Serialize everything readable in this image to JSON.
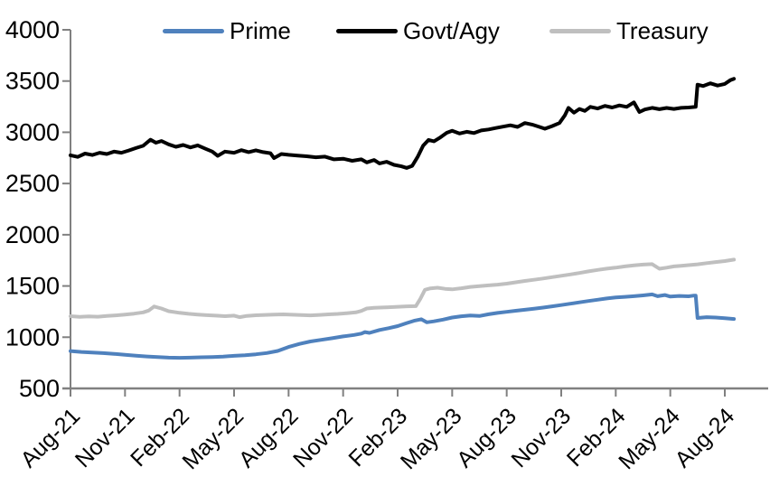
{
  "chart_data": {
    "type": "line",
    "title": "",
    "xlabel": "",
    "ylabel": "",
    "grid": false,
    "legend_position": "top",
    "axis_color": "#808080",
    "text_color": "#000000",
    "ylim": [
      500,
      4000
    ],
    "y_ticks": [
      500,
      1000,
      1500,
      2000,
      2500,
      3000,
      3500,
      4000
    ],
    "x_tick_labels": [
      "Aug-21",
      "Nov-21",
      "Feb-22",
      "May-22",
      "Aug-22",
      "Nov-22",
      "Feb-23",
      "May-23",
      "Aug-23",
      "Nov-23",
      "Feb-24",
      "May-24",
      "Aug-24"
    ],
    "x_months_per_tick": 3,
    "x_domain_months": [
      0,
      36.5
    ],
    "series": [
      {
        "name": "Prime",
        "color": "#4f81bd",
        "points": [
          [
            0,
            865
          ],
          [
            0.6,
            856
          ],
          [
            1.2,
            850
          ],
          [
            1.8,
            845
          ],
          [
            2.4,
            838
          ],
          [
            3,
            828
          ],
          [
            3.6,
            820
          ],
          [
            4.2,
            812
          ],
          [
            4.8,
            806
          ],
          [
            5.4,
            801
          ],
          [
            6,
            799
          ],
          [
            6.6,
            801
          ],
          [
            7.2,
            804
          ],
          [
            7.8,
            807
          ],
          [
            8.4,
            811
          ],
          [
            9,
            818
          ],
          [
            9.6,
            824
          ],
          [
            10.2,
            833
          ],
          [
            10.8,
            846
          ],
          [
            11.4,
            866
          ],
          [
            12,
            905
          ],
          [
            12.6,
            935
          ],
          [
            13.2,
            958
          ],
          [
            13.8,
            974
          ],
          [
            14.4,
            990
          ],
          [
            15,
            1008
          ],
          [
            15.6,
            1022
          ],
          [
            16,
            1035
          ],
          [
            16.2,
            1050
          ],
          [
            16.45,
            1042
          ],
          [
            17,
            1070
          ],
          [
            17.5,
            1088
          ],
          [
            18,
            1108
          ],
          [
            18.5,
            1138
          ],
          [
            18.9,
            1160
          ],
          [
            19.3,
            1175
          ],
          [
            19.6,
            1145
          ],
          [
            20,
            1155
          ],
          [
            20.5,
            1172
          ],
          [
            21,
            1192
          ],
          [
            21.5,
            1204
          ],
          [
            22,
            1212
          ],
          [
            22.5,
            1207
          ],
          [
            23,
            1224
          ],
          [
            23.5,
            1237
          ],
          [
            24,
            1248
          ],
          [
            24.5,
            1258
          ],
          [
            25,
            1268
          ],
          [
            25.5,
            1278
          ],
          [
            26,
            1289
          ],
          [
            26.5,
            1301
          ],
          [
            27,
            1314
          ],
          [
            27.5,
            1327
          ],
          [
            28,
            1340
          ],
          [
            28.5,
            1353
          ],
          [
            29,
            1366
          ],
          [
            29.5,
            1378
          ],
          [
            30,
            1388
          ],
          [
            30.5,
            1394
          ],
          [
            31,
            1400
          ],
          [
            31.5,
            1408
          ],
          [
            32,
            1418
          ],
          [
            32.3,
            1400
          ],
          [
            32.7,
            1412
          ],
          [
            33,
            1397
          ],
          [
            33.5,
            1403
          ],
          [
            34,
            1399
          ],
          [
            34.3,
            1406
          ],
          [
            34.4,
            1405
          ],
          [
            34.5,
            1188
          ],
          [
            35,
            1196
          ],
          [
            35.5,
            1192
          ],
          [
            36,
            1186
          ],
          [
            36.5,
            1178
          ]
        ]
      },
      {
        "name": "Govt/Agy",
        "color": "#000000",
        "points": [
          [
            0,
            2775
          ],
          [
            0.4,
            2760
          ],
          [
            0.8,
            2792
          ],
          [
            1.2,
            2778
          ],
          [
            1.6,
            2800
          ],
          [
            2,
            2788
          ],
          [
            2.4,
            2812
          ],
          [
            2.8,
            2800
          ],
          [
            3.2,
            2822
          ],
          [
            3.6,
            2846
          ],
          [
            4,
            2868
          ],
          [
            4.4,
            2928
          ],
          [
            4.7,
            2898
          ],
          [
            5,
            2915
          ],
          [
            5.4,
            2882
          ],
          [
            5.8,
            2858
          ],
          [
            6.2,
            2876
          ],
          [
            6.6,
            2852
          ],
          [
            7,
            2872
          ],
          [
            7.4,
            2842
          ],
          [
            7.8,
            2812
          ],
          [
            8.1,
            2770
          ],
          [
            8.5,
            2812
          ],
          [
            9,
            2800
          ],
          [
            9.4,
            2826
          ],
          [
            9.8,
            2806
          ],
          [
            10.2,
            2824
          ],
          [
            10.6,
            2806
          ],
          [
            11,
            2796
          ],
          [
            11.2,
            2748
          ],
          [
            11.6,
            2788
          ],
          [
            12,
            2780
          ],
          [
            12.5,
            2772
          ],
          [
            13,
            2766
          ],
          [
            13.5,
            2756
          ],
          [
            14,
            2762
          ],
          [
            14.5,
            2736
          ],
          [
            15,
            2742
          ],
          [
            15.5,
            2722
          ],
          [
            16,
            2736
          ],
          [
            16.3,
            2706
          ],
          [
            16.7,
            2730
          ],
          [
            17,
            2696
          ],
          [
            17.4,
            2712
          ],
          [
            17.8,
            2682
          ],
          [
            18.2,
            2668
          ],
          [
            18.5,
            2652
          ],
          [
            18.8,
            2672
          ],
          [
            19.1,
            2760
          ],
          [
            19.4,
            2870
          ],
          [
            19.7,
            2925
          ],
          [
            20,
            2912
          ],
          [
            20.3,
            2945
          ],
          [
            20.7,
            2995
          ],
          [
            21,
            3015
          ],
          [
            21.4,
            2988
          ],
          [
            21.8,
            3005
          ],
          [
            22.2,
            2992
          ],
          [
            22.6,
            3018
          ],
          [
            23,
            3028
          ],
          [
            23.4,
            3042
          ],
          [
            23.8,
            3055
          ],
          [
            24.2,
            3068
          ],
          [
            24.6,
            3052
          ],
          [
            25,
            3090
          ],
          [
            25.4,
            3075
          ],
          [
            25.8,
            3052
          ],
          [
            26.1,
            3035
          ],
          [
            26.5,
            3060
          ],
          [
            26.9,
            3090
          ],
          [
            27.2,
            3165
          ],
          [
            27.4,
            3238
          ],
          [
            27.7,
            3192
          ],
          [
            28,
            3228
          ],
          [
            28.3,
            3208
          ],
          [
            28.6,
            3248
          ],
          [
            29,
            3232
          ],
          [
            29.4,
            3258
          ],
          [
            29.8,
            3242
          ],
          [
            30.2,
            3262
          ],
          [
            30.6,
            3248
          ],
          [
            31,
            3292
          ],
          [
            31.3,
            3198
          ],
          [
            31.6,
            3222
          ],
          [
            32,
            3238
          ],
          [
            32.4,
            3225
          ],
          [
            32.8,
            3237
          ],
          [
            33.2,
            3228
          ],
          [
            33.6,
            3238
          ],
          [
            34,
            3242
          ],
          [
            34.4,
            3248
          ],
          [
            34.5,
            3465
          ],
          [
            34.8,
            3452
          ],
          [
            35.2,
            3478
          ],
          [
            35.6,
            3456
          ],
          [
            36,
            3472
          ],
          [
            36.3,
            3508
          ],
          [
            36.5,
            3522
          ]
        ]
      },
      {
        "name": "Treasury",
        "color": "#bfbfbf",
        "points": [
          [
            0,
            1205
          ],
          [
            0.5,
            1199
          ],
          [
            1,
            1203
          ],
          [
            1.5,
            1200
          ],
          [
            2,
            1207
          ],
          [
            2.5,
            1213
          ],
          [
            3,
            1221
          ],
          [
            3.5,
            1230
          ],
          [
            4,
            1242
          ],
          [
            4.3,
            1260
          ],
          [
            4.6,
            1300
          ],
          [
            5,
            1280
          ],
          [
            5.4,
            1254
          ],
          [
            6,
            1238
          ],
          [
            6.5,
            1228
          ],
          [
            7,
            1221
          ],
          [
            7.5,
            1215
          ],
          [
            8,
            1211
          ],
          [
            8.5,
            1205
          ],
          [
            9,
            1211
          ],
          [
            9.3,
            1196
          ],
          [
            9.7,
            1208
          ],
          [
            10.2,
            1214
          ],
          [
            10.7,
            1218
          ],
          [
            11.2,
            1221
          ],
          [
            11.7,
            1223
          ],
          [
            12.2,
            1219
          ],
          [
            12.7,
            1216
          ],
          [
            13.2,
            1213
          ],
          [
            13.7,
            1218
          ],
          [
            14.2,
            1223
          ],
          [
            14.7,
            1227
          ],
          [
            15.2,
            1234
          ],
          [
            15.7,
            1242
          ],
          [
            16,
            1256
          ],
          [
            16.3,
            1280
          ],
          [
            16.7,
            1286
          ],
          [
            17,
            1289
          ],
          [
            17.5,
            1293
          ],
          [
            18,
            1297
          ],
          [
            18.5,
            1301
          ],
          [
            19,
            1303
          ],
          [
            19.25,
            1375
          ],
          [
            19.5,
            1463
          ],
          [
            19.8,
            1477
          ],
          [
            20.2,
            1483
          ],
          [
            20.6,
            1472
          ],
          [
            21,
            1467
          ],
          [
            21.5,
            1478
          ],
          [
            22,
            1491
          ],
          [
            22.5,
            1499
          ],
          [
            23,
            1506
          ],
          [
            23.5,
            1513
          ],
          [
            24,
            1523
          ],
          [
            24.5,
            1536
          ],
          [
            25,
            1549
          ],
          [
            25.5,
            1561
          ],
          [
            26,
            1573
          ],
          [
            26.5,
            1586
          ],
          [
            27,
            1599
          ],
          [
            27.5,
            1613
          ],
          [
            28,
            1627
          ],
          [
            28.5,
            1643
          ],
          [
            29,
            1657
          ],
          [
            29.5,
            1669
          ],
          [
            30,
            1679
          ],
          [
            30.5,
            1691
          ],
          [
            31,
            1701
          ],
          [
            31.5,
            1709
          ],
          [
            32,
            1713
          ],
          [
            32.4,
            1668
          ],
          [
            32.8,
            1679
          ],
          [
            33.2,
            1691
          ],
          [
            33.6,
            1697
          ],
          [
            34,
            1703
          ],
          [
            34.5,
            1711
          ],
          [
            35,
            1723
          ],
          [
            35.5,
            1733
          ],
          [
            36,
            1743
          ],
          [
            36.5,
            1757
          ]
        ]
      }
    ]
  }
}
